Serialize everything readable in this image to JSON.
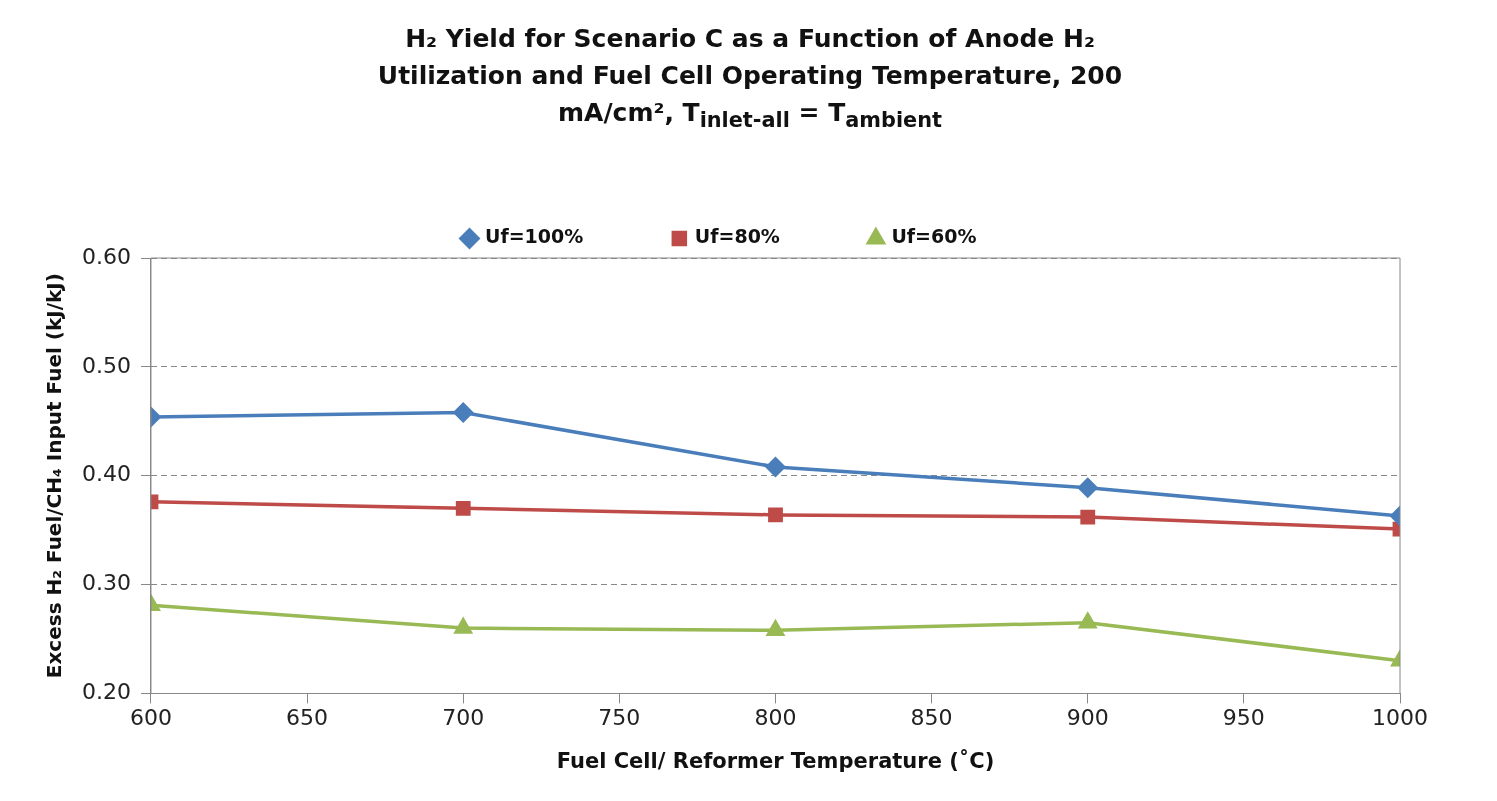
{
  "chart_data": {
    "type": "line",
    "title": "H₂ Yield for Scenario C as a Function of Anode H₂ Utilization and Fuel Cell Operating Temperature, 200 mA/cm², T$_{inlet-all}$ = T$_{ambient}$",
    "xlabel": "Fuel Cell/ Reformer Temperature (˚C)",
    "ylabel": "Excess H₂ Fuel/CH₄ Input Fuel (kJ/kJ)",
    "x": [
      600,
      700,
      800,
      900,
      1000
    ],
    "series": [
      {
        "name": "Uf=100%",
        "color": "#4a7ebb",
        "marker": "diamond",
        "values": [
          0.454,
          0.458,
          0.408,
          0.389,
          0.363
        ]
      },
      {
        "name": "Uf=80%",
        "color": "#be4b48",
        "marker": "square",
        "values": [
          0.376,
          0.37,
          0.364,
          0.362,
          0.351
        ]
      },
      {
        "name": "Uf=60%",
        "color": "#98b954",
        "marker": "triangle",
        "values": [
          0.281,
          0.26,
          0.258,
          0.265,
          0.23
        ]
      }
    ],
    "xlim": [
      600,
      1000
    ],
    "xticks": [
      600,
      650,
      700,
      750,
      800,
      850,
      900,
      950,
      1000
    ],
    "ylim": [
      0.2,
      0.6
    ],
    "yticks": [
      {
        "value": 0.2,
        "label": "0.20"
      },
      {
        "value": 0.3,
        "label": "0.30"
      },
      {
        "value": 0.4,
        "label": "0.40"
      },
      {
        "value": 0.5,
        "label": "0.50"
      },
      {
        "value": 0.6,
        "label": "0.60"
      }
    ],
    "grid": "y",
    "legend": "top",
    "line_style": "solid"
  }
}
